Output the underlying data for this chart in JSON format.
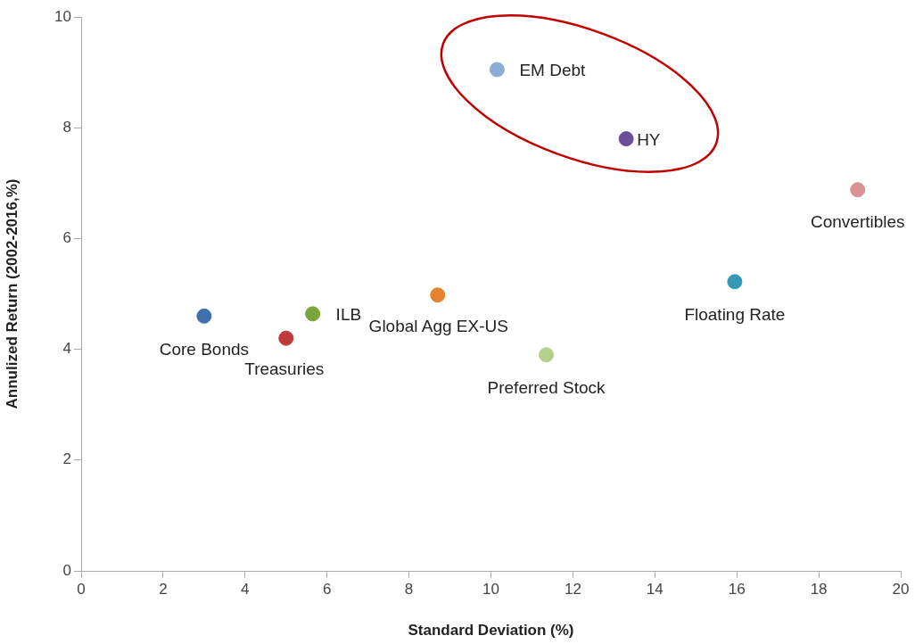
{
  "chart_data": {
    "type": "scatter",
    "xlabel": "Standard Deviation (%)",
    "ylabel": "Annulized Return (2002-2016,%)",
    "xlim": [
      0,
      20
    ],
    "xticks": [
      0,
      2,
      4,
      6,
      8,
      10,
      12,
      14,
      16,
      18,
      20
    ],
    "ylim": [
      0,
      10
    ],
    "yticks": [
      0,
      2,
      4,
      6,
      8,
      10
    ],
    "grid": false,
    "legend": false,
    "marker": "circle",
    "series": [
      {
        "name": "Core Bonds",
        "color": "#3f6fae",
        "x": [
          3.0
        ],
        "values": [
          4.6
        ]
      },
      {
        "name": "Treasuries",
        "color": "#c0393b",
        "x": [
          5.0
        ],
        "values": [
          4.2
        ]
      },
      {
        "name": "ILB",
        "color": "#7aa43c",
        "x": [
          5.65
        ],
        "values": [
          4.64
        ]
      },
      {
        "name": "Global Agg EX-US",
        "color": "#e6822f",
        "x": [
          8.7
        ],
        "values": [
          4.98
        ]
      },
      {
        "name": "Preferred Stock",
        "color": "#b5cf8d",
        "x": [
          11.35
        ],
        "values": [
          3.9
        ]
      },
      {
        "name": "EM Debt",
        "color": "#8eaad8",
        "x": [
          10.15
        ],
        "values": [
          9.05
        ]
      },
      {
        "name": "HY",
        "color": "#6b4e9a",
        "x": [
          13.3
        ],
        "values": [
          7.8
        ]
      },
      {
        "name": "Floating Rate",
        "color": "#3499b4",
        "x": [
          15.95
        ],
        "values": [
          5.22
        ]
      },
      {
        "name": "Convertibles",
        "color": "#d99295",
        "x": [
          18.95
        ],
        "values": [
          6.88
        ]
      }
    ]
  }
}
